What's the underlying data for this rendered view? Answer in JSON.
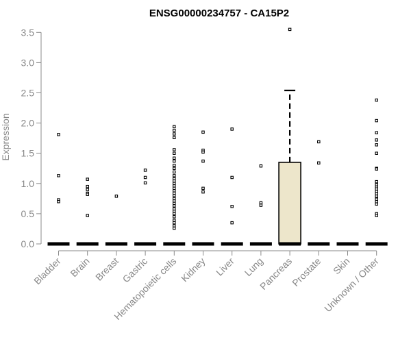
{
  "chart_data": {
    "type": "box",
    "title": "ENSG00000234757 - CA15P2",
    "ylabel": "Expression",
    "xlabel": "",
    "ylim": [
      0,
      3.55
    ],
    "yticks": [
      "0.0",
      "0.5",
      "1.0",
      "1.5",
      "2.0",
      "2.5",
      "3.0",
      "3.5"
    ],
    "ytick_values": [
      0,
      0.5,
      1.0,
      1.5,
      2.0,
      2.5,
      3.0,
      3.5
    ],
    "categories": [
      "Bladder",
      "Brain",
      "Breast",
      "Gastric",
      "Hematopoietic cells",
      "Kidney",
      "Liver",
      "Lung",
      "Pancreas",
      "Prostate",
      "Skin",
      "Unknown / Other"
    ],
    "box_fill": "#ede6cb",
    "tick_color": "#888888",
    "boxes": [
      {
        "category": "Bladder",
        "min": 0,
        "q1": 0,
        "median": 0,
        "q3": 0,
        "max": 0,
        "outliers": [
          1.81,
          1.13,
          0.73,
          0.7
        ]
      },
      {
        "category": "Brain",
        "min": 0,
        "q1": 0,
        "median": 0,
        "q3": 0,
        "max": 0,
        "outliers": [
          1.07,
          0.95,
          0.9,
          0.84,
          0.82,
          0.47
        ]
      },
      {
        "category": "Breast",
        "min": 0,
        "q1": 0,
        "median": 0,
        "q3": 0,
        "max": 0,
        "outliers": [
          0.79
        ]
      },
      {
        "category": "Gastric",
        "min": 0,
        "q1": 0,
        "median": 0,
        "q3": 0,
        "max": 0,
        "outliers": [
          1.22,
          1.1,
          1.01
        ]
      },
      {
        "category": "Hematopoietic cells",
        "min": 0,
        "q1": 0,
        "median": 0,
        "q3": 0,
        "max": 0,
        "outliers": [
          1.94,
          1.88,
          1.82,
          1.76,
          1.56,
          1.5,
          1.42,
          1.37,
          1.3,
          1.25,
          1.19,
          1.13,
          1.08,
          1.04,
          1.0,
          0.96,
          0.92,
          0.88,
          0.84,
          0.8,
          0.75,
          0.71,
          0.67,
          0.63,
          0.58,
          0.54,
          0.5,
          0.45,
          0.39,
          0.35,
          0.3,
          0.26
        ]
      },
      {
        "category": "Kidney",
        "min": 0,
        "q1": 0,
        "median": 0,
        "q3": 0,
        "max": 0,
        "outliers": [
          1.85,
          1.55,
          1.52,
          1.37,
          0.92,
          0.86
        ]
      },
      {
        "category": "Liver",
        "min": 0,
        "q1": 0,
        "median": 0,
        "q3": 0,
        "max": 0,
        "outliers": [
          1.9,
          1.1,
          0.62,
          0.35
        ]
      },
      {
        "category": "Lung",
        "min": 0,
        "q1": 0,
        "median": 0,
        "q3": 0,
        "max": 0,
        "outliers": [
          1.29,
          0.68,
          0.64
        ]
      },
      {
        "category": "Pancreas",
        "min": 0,
        "q1": 0,
        "median": 0,
        "q3": 1.35,
        "max": 2.54,
        "outliers": [
          3.55
        ]
      },
      {
        "category": "Prostate",
        "min": 0,
        "q1": 0,
        "median": 0,
        "q3": 0,
        "max": 0,
        "outliers": [
          1.69,
          1.34
        ]
      },
      {
        "category": "Skin",
        "min": 0,
        "q1": 0,
        "median": 0,
        "q3": 0,
        "max": 0,
        "outliers": []
      },
      {
        "category": "Unknown / Other",
        "min": 0,
        "q1": 0,
        "median": 0,
        "q3": 0,
        "max": 0,
        "outliers": [
          2.38,
          2.04,
          1.84,
          1.72,
          1.64,
          1.5,
          1.25,
          1.24,
          1.03,
          0.98,
          0.94,
          0.91,
          0.87,
          0.83,
          0.79,
          0.74,
          0.7,
          0.66,
          0.5,
          0.47
        ]
      }
    ]
  }
}
